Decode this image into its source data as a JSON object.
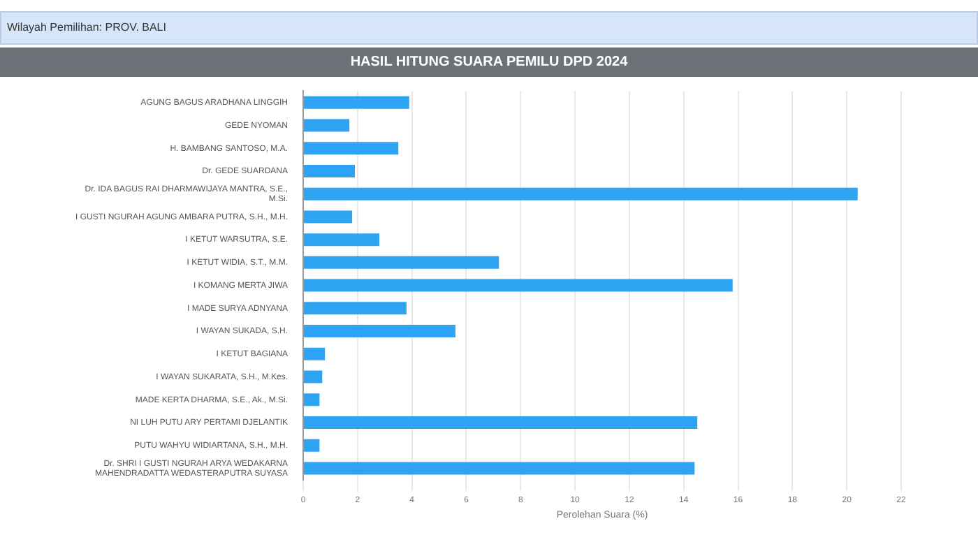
{
  "chart_data": {
    "type": "bar",
    "orientation": "horizontal",
    "subtitle": "Wilayah Pemilihan: PROV. BALI",
    "title": "HASIL HITUNG SUARA PEMILU DPD 2024",
    "xlabel": "Perolehan Suara (%)",
    "categories": [
      "AGUNG BAGUS ARADHANA LINGGIH",
      "GEDE NYOMAN",
      "H. BAMBANG SANTOSO, M.A.",
      "Dr. GEDE SUARDANA",
      "Dr. IDA BAGUS RAI DHARMAWIJAYA MANTRA, S.E., M.Si.",
      "I GUSTI NGURAH AGUNG AMBARA PUTRA, S.H., M.H.",
      "I KETUT WARSUTRA, S.E.",
      "I KETUT WIDIA, S.T., M.M.",
      "I KOMANG MERTA JIWA",
      "I MADE SURYA ADNYANA",
      "I WAYAN SUKADA, S.H.",
      "I KETUT BAGIANA",
      "I WAYAN SUKARATA, S.H., M.Kes.",
      "MADE KERTA DHARMA, S.E., Ak., M.Si.",
      "NI LUH PUTU ARY PERTAMI DJELANTIK",
      "PUTU WAHYU WIDIARTANA, S.H., M.H.",
      "Dr. SHRI I GUSTI NGURAH ARYA WEDAKARNA MAHENDRADATTA WEDASTERAPUTRA SUYASA"
    ],
    "values": [
      3.9,
      1.7,
      3.5,
      1.9,
      20.4,
      1.8,
      2.8,
      7.2,
      15.8,
      3.8,
      5.6,
      0.8,
      0.7,
      0.6,
      14.5,
      0.6,
      14.4
    ],
    "color": "#2ea3f2",
    "xlim": [
      0,
      22
    ],
    "xticks": [
      0,
      2,
      4,
      6,
      8,
      10,
      12,
      14,
      16,
      18,
      20,
      22
    ],
    "grid": "x"
  }
}
